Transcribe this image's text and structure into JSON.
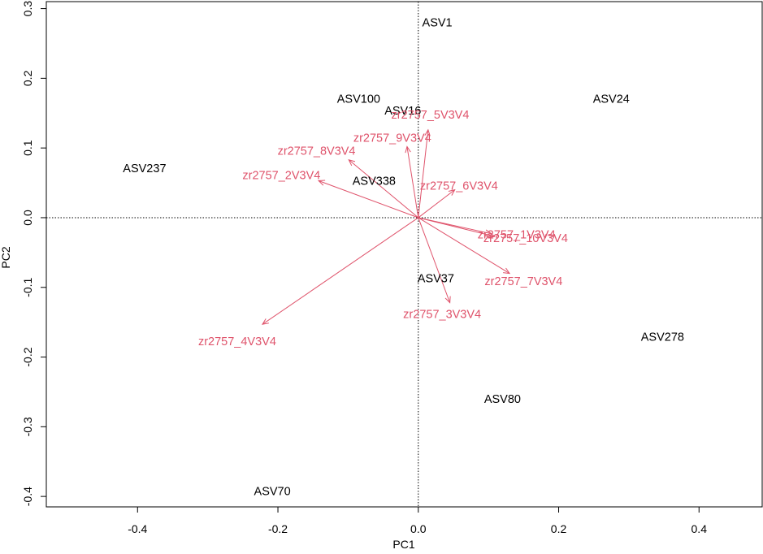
{
  "chart_data": {
    "type": "scatter",
    "subtype": "biplot",
    "xlabel": "PC1",
    "ylabel": "PC2",
    "xlim": [
      -0.53,
      0.49
    ],
    "ylim": [
      -0.415,
      0.31
    ],
    "xticks": [
      -0.4,
      -0.2,
      0.0,
      0.2,
      0.4
    ],
    "xtick_labels": [
      "-0.4",
      "-0.2",
      "0.0",
      "0.2",
      "0.4"
    ],
    "yticks": [
      -0.4,
      -0.3,
      -0.2,
      -0.1,
      0.0,
      0.1,
      0.2,
      0.3
    ],
    "ytick_labels": [
      "-0.4",
      "-0.3",
      "-0.2",
      "-0.1",
      "0.0",
      "0.1",
      "0.2",
      "0.3"
    ],
    "reference_lines": {
      "x": 0,
      "y": 0,
      "style": "dotted"
    },
    "grid": false,
    "colors": {
      "observations": "#000000",
      "loadings": "#DF536B"
    },
    "observations": [
      {
        "label": "ASV1",
        "x": 0.027,
        "y": 0.28
      },
      {
        "label": "ASV100",
        "x": -0.085,
        "y": 0.171
      },
      {
        "label": "ASV16",
        "x": -0.022,
        "y": 0.154
      },
      {
        "label": "ASV24",
        "x": 0.275,
        "y": 0.171
      },
      {
        "label": "ASV237",
        "x": -0.39,
        "y": 0.071
      },
      {
        "label": "ASV338",
        "x": -0.063,
        "y": 0.053
      },
      {
        "label": "ASV37",
        "x": 0.025,
        "y": -0.087
      },
      {
        "label": "ASV278",
        "x": 0.348,
        "y": -0.171
      },
      {
        "label": "ASV80",
        "x": 0.12,
        "y": -0.26
      },
      {
        "label": "ASV70",
        "x": -0.208,
        "y": -0.392
      }
    ],
    "loadings": [
      {
        "label": "zr2757_5V3V4",
        "x": 0.014,
        "y": 0.126,
        "label_x": 0.017,
        "label_y": 0.148
      },
      {
        "label": "zr2757_9V3V4",
        "x": -0.016,
        "y": 0.102,
        "label_x": -0.037,
        "label_y": 0.115
      },
      {
        "label": "zr2757_8V3V4",
        "x": -0.099,
        "y": 0.083,
        "label_x": -0.145,
        "label_y": 0.096
      },
      {
        "label": "zr2757_2V3V4",
        "x": -0.142,
        "y": 0.053,
        "label_x": -0.195,
        "label_y": 0.061
      },
      {
        "label": "zr2757_6V3V4",
        "x": 0.052,
        "y": 0.04,
        "label_x": 0.058,
        "label_y": 0.046
      },
      {
        "label": "zr2757_1V3V4",
        "x": 0.104,
        "y": -0.023,
        "label_x": 0.14,
        "label_y": -0.024
      },
      {
        "label": "zr2757_10V3V4",
        "x": 0.109,
        "y": -0.027,
        "label_x": 0.153,
        "label_y": -0.029
      },
      {
        "label": "zr2757_7V3V4",
        "x": 0.13,
        "y": -0.08,
        "label_x": 0.15,
        "label_y": -0.091
      },
      {
        "label": "zr2757_3V3V4",
        "x": 0.045,
        "y": -0.122,
        "label_x": 0.034,
        "label_y": -0.138
      },
      {
        "label": "zr2757_4V3V4",
        "x": -0.222,
        "y": -0.153,
        "label_x": -0.258,
        "label_y": -0.177
      }
    ]
  }
}
